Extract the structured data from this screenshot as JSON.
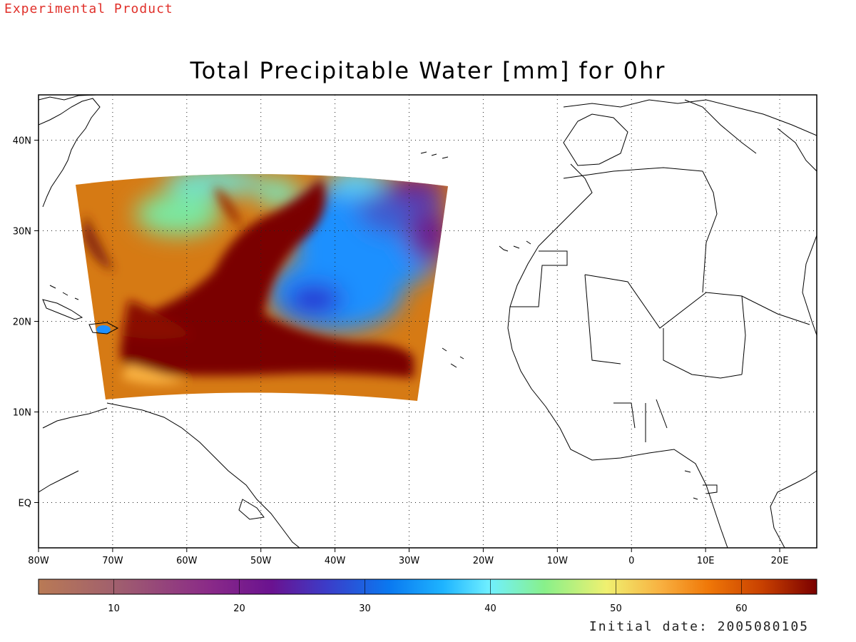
{
  "banner": "Experimental Product",
  "title": "Total Precipitable Water [mm] for 0hr",
  "initial_date": "Initial date: 2005080105",
  "map": {
    "lon_range": [
      -80,
      25
    ],
    "lat_range": [
      -5,
      45
    ],
    "lon_ticks": [
      "80W",
      "70W",
      "60W",
      "50W",
      "40W",
      "30W",
      "20W",
      "10W",
      "0",
      "10E",
      "20E"
    ],
    "lat_ticks": [
      "40N",
      "30N",
      "20N",
      "10N",
      "EQ"
    ],
    "grid": "dotted",
    "coastlines": true
  },
  "colorbar": {
    "range": [
      4,
      66
    ],
    "tick_labels": [
      "10",
      "20",
      "30",
      "40",
      "50",
      "60"
    ],
    "tick_values": [
      10,
      20,
      30,
      40,
      50,
      60
    ],
    "colors": [
      "#b97a55",
      "#a05f6e",
      "#8a2a88",
      "#6a1290",
      "#3c3cc8",
      "#0a78f0",
      "#1eb4ff",
      "#70f0ff",
      "#88f08a",
      "#f0f070",
      "#f8b040",
      "#f07808",
      "#c84000",
      "#7a0000"
    ]
  }
}
